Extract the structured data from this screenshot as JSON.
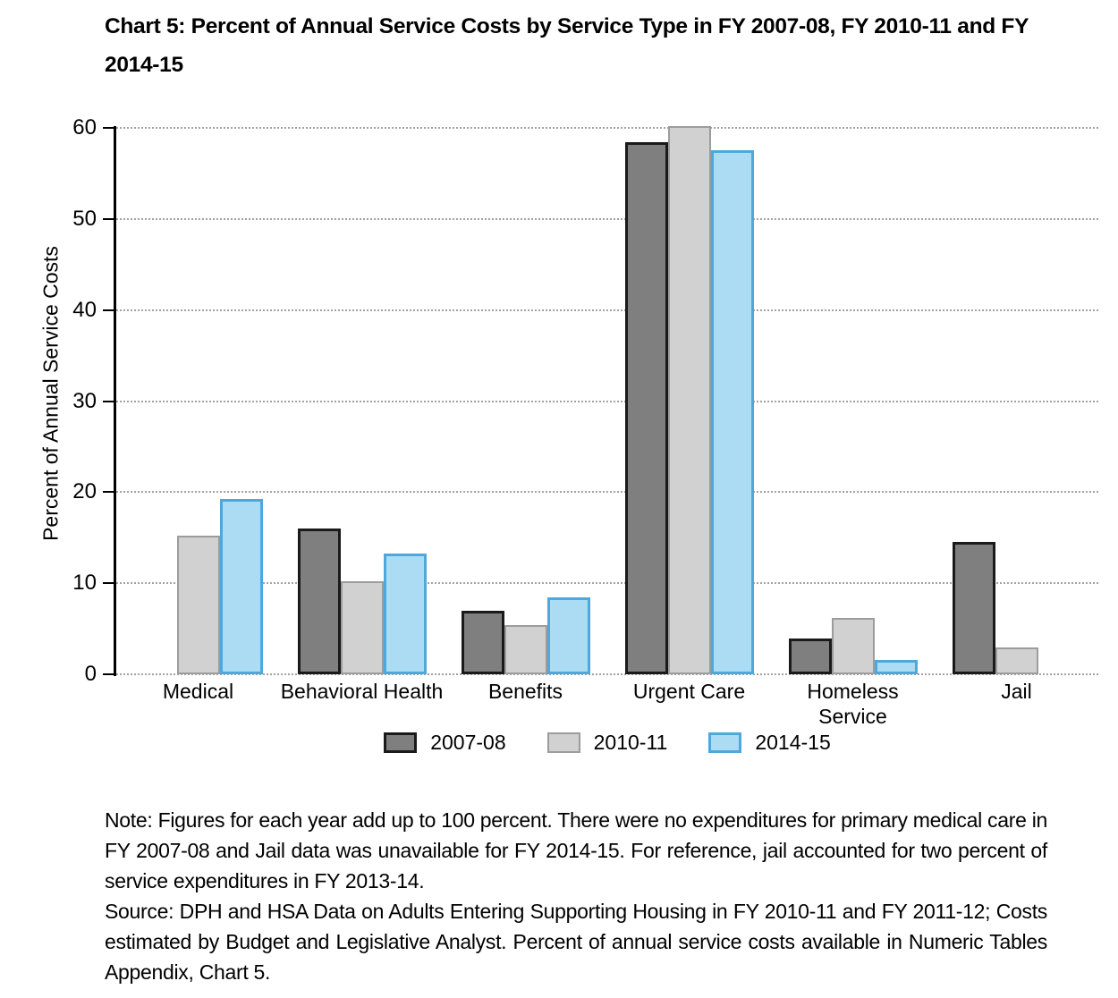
{
  "title": "Chart 5: Percent of Annual Service Costs by Service Type in FY 2007-08, FY 2010-11 and FY 2014-15",
  "chart_data": {
    "type": "bar",
    "title": "Chart 5: Percent of Annual Service Costs by Service Type in FY 2007-08, FY 2010-11 and FY 2014-15",
    "xlabel": "",
    "ylabel": "Percent of Annual Service Costs",
    "ylim": [
      0,
      60
    ],
    "yticks": [
      0,
      10,
      20,
      30,
      40,
      50,
      60
    ],
    "grid": "horizontal-dotted",
    "legend_position": "bottom-center",
    "categories": [
      "Medical",
      "Behavioral Health",
      "Benefits",
      "Urgent Care",
      "Homeless Service",
      "Jail"
    ],
    "series": [
      {
        "name": "2007-08",
        "fill": "#7f7f7f",
        "border": "#1a1a1a",
        "values": [
          0,
          16.0,
          7.0,
          58.4,
          3.9,
          14.5
        ]
      },
      {
        "name": "2010-11",
        "fill": "#d1d1d1",
        "border": "#9c9c9c",
        "values": [
          15.2,
          10.2,
          5.4,
          60.2,
          6.2,
          2.9
        ]
      },
      {
        "name": "2014-15",
        "fill": "#abdcf3",
        "border": "#4fa8dc",
        "values": [
          19.2,
          13.3,
          8.4,
          57.5,
          1.6,
          0
        ]
      }
    ]
  },
  "note": "Note: Figures for each year add up to 100 percent. There were no expenditures for primary medical care in FY 2007-08 and Jail data was unavailable for FY 2014-15. For reference, jail accounted for two percent of service expenditures in FY 2013-14.",
  "source": "Source: DPH and HSA Data on Adults Entering Supporting Housing in FY 2010-11 and FY 2011-12; Costs estimated by Budget and Legislative Analyst. Percent of annual service costs available in Numeric Tables Appendix, Chart 5."
}
